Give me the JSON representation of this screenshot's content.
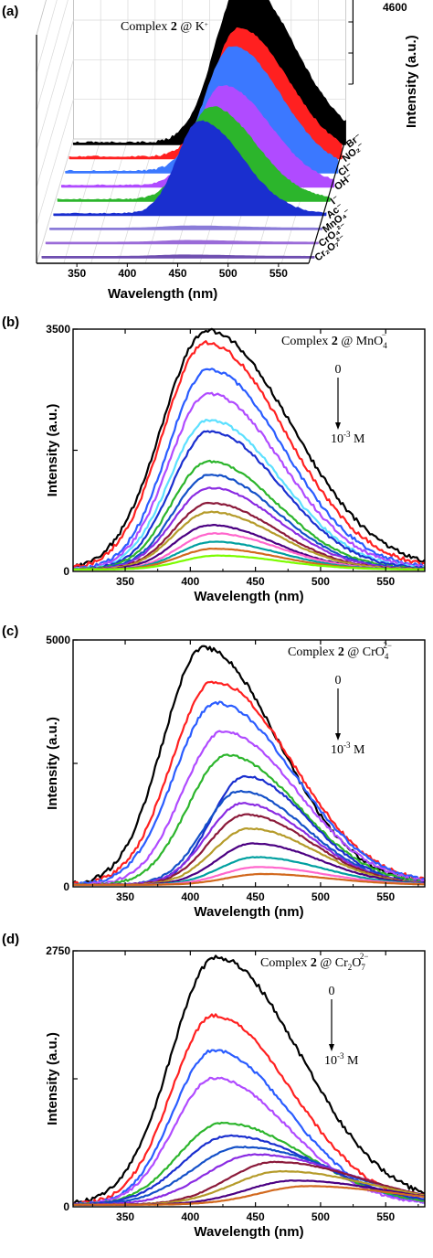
{
  "chart_data": [
    {
      "panel_label": "(a)",
      "type": "area",
      "annotation_prefix": "Complex ",
      "annotation_bold": "2",
      "annotation_suffix": " @ K",
      "annotation_sup": "+",
      "xlabel": "Wavelength (nm)",
      "zlabel": "Intensity (a.u.)",
      "xlim": [
        310,
        580
      ],
      "zmax": 4600,
      "x_ticks": [
        "350",
        "400",
        "450",
        "500",
        "550"
      ],
      "z_tick_label": "4600",
      "z_ticks_count": 6,
      "series": [
        {
          "name": "Br⁻",
          "color": "#000000",
          "peak": 4500,
          "center": 478,
          "width": 44
        },
        {
          "name": "NO₂⁻",
          "color": "#ff2020",
          "peak": 3600,
          "center": 478,
          "width": 42
        },
        {
          "name": "Cl⁻",
          "color": "#3b78ff",
          "peak": 3500,
          "center": 475,
          "width": 42
        },
        {
          "name": "OH⁻",
          "color": "#b04bff",
          "peak": 2800,
          "center": 470,
          "width": 40
        },
        {
          "name": "I⁻",
          "color": "#2cb52c",
          "peak": 2600,
          "center": 462,
          "width": 38
        },
        {
          "name": "Ac⁻",
          "color": "#1a2fcf",
          "peak": 2600,
          "center": 455,
          "width": 36
        },
        {
          "name": "MnO₄⁻",
          "color": "#8a7bd8",
          "peak": 60,
          "center": 450,
          "width": 40
        },
        {
          "name": "CrO₄²⁻",
          "color": "#9a6bd8",
          "peak": 50,
          "center": 450,
          "width": 40
        },
        {
          "name": "Cr₂O₇²⁻",
          "color": "#6f4fb0",
          "peak": 40,
          "center": 450,
          "width": 40
        }
      ]
    },
    {
      "panel_label": "(b)",
      "type": "line",
      "annotation_prefix": "Complex ",
      "annotation_bold": "2",
      "annotation_suffix": " @ MnO",
      "annotation_sub": "4",
      "annotation_sup": "−",
      "arrow_top": "0",
      "arrow_bottom_base": "10",
      "arrow_bottom_exp": "-3",
      "arrow_bottom_unit": " M",
      "xlabel": "Wavelength (nm)",
      "ylabel": "Intensity (a.u.)",
      "xlim": [
        310,
        580
      ],
      "ylim": [
        0,
        3500
      ],
      "x_ticks": [
        "350",
        "400",
        "450",
        "500",
        "550"
      ],
      "y_ticks": [
        "0",
        "3500"
      ],
      "series": [
        {
          "color": "#000000",
          "peak": 3450,
          "center": 413,
          "width": 56
        },
        {
          "color": "#ff2020",
          "peak": 3270,
          "center": 412,
          "width": 53
        },
        {
          "color": "#2a5cff",
          "peak": 2890,
          "center": 414,
          "width": 50
        },
        {
          "color": "#b04bff",
          "peak": 2540,
          "center": 414,
          "width": 49
        },
        {
          "color": "#5ce0ff",
          "peak": 2160,
          "center": 414,
          "width": 48
        },
        {
          "color": "#1a2fcf",
          "peak": 2000,
          "center": 415,
          "width": 47
        },
        {
          "color": "#2cb52c",
          "peak": 1560,
          "center": 414,
          "width": 46
        },
        {
          "color": "#1450c8",
          "peak": 1370,
          "center": 415,
          "width": 45
        },
        {
          "color": "#8a2be2",
          "peak": 1180,
          "center": 415,
          "width": 45
        },
        {
          "color": "#8b1a3a",
          "peak": 960,
          "center": 415,
          "width": 44
        },
        {
          "color": "#b59b2a",
          "peak": 830,
          "center": 415,
          "width": 44
        },
        {
          "color": "#4b0082",
          "peak": 640,
          "center": 415,
          "width": 43
        },
        {
          "color": "#ff66cc",
          "peak": 520,
          "center": 418,
          "width": 43
        },
        {
          "color": "#00a0a0",
          "peak": 400,
          "center": 418,
          "width": 43
        },
        {
          "color": "#d2691e",
          "peak": 300,
          "center": 418,
          "width": 43
        },
        {
          "color": "#7cfc00",
          "peak": 200,
          "center": 420,
          "width": 43
        }
      ]
    },
    {
      "panel_label": "(c)",
      "type": "line",
      "annotation_prefix": "Complex ",
      "annotation_bold": "2",
      "annotation_suffix": " @ CrO",
      "annotation_sub": "4",
      "annotation_sup": "2−",
      "arrow_top": "0",
      "arrow_bottom_base": "10",
      "arrow_bottom_exp": "-3",
      "arrow_bottom_unit": " M",
      "xlabel": "Wavelength (nm)",
      "ylabel": "Intensity (a.u.)",
      "xlim": [
        310,
        580
      ],
      "ylim": [
        0,
        5000
      ],
      "x_ticks": [
        "350",
        "400",
        "450",
        "500",
        "550"
      ],
      "y_ticks": [
        "0",
        "5000"
      ],
      "series": [
        {
          "color": "#000000",
          "peak": 4800,
          "center": 410,
          "width": 50
        },
        {
          "color": "#ff2020",
          "peak": 4120,
          "center": 418,
          "width": 52
        },
        {
          "color": "#2a5cff",
          "peak": 3680,
          "center": 420,
          "width": 52
        },
        {
          "color": "#b04bff",
          "peak": 3100,
          "center": 425,
          "width": 50
        },
        {
          "color": "#2cb52c",
          "peak": 2620,
          "center": 428,
          "width": 48
        },
        {
          "color": "#1a2fcf",
          "peak": 2200,
          "center": 442,
          "width": 42
        },
        {
          "color": "#1450c8",
          "peak": 1900,
          "center": 438,
          "width": 44
        },
        {
          "color": "#8a2be2",
          "peak": 1650,
          "center": 440,
          "width": 44
        },
        {
          "color": "#8b1a3a",
          "peak": 1420,
          "center": 442,
          "width": 44
        },
        {
          "color": "#b59b2a",
          "peak": 1140,
          "center": 445,
          "width": 44
        },
        {
          "color": "#4b0082",
          "peak": 840,
          "center": 448,
          "width": 44
        },
        {
          "color": "#00a0a0",
          "peak": 560,
          "center": 450,
          "width": 44
        },
        {
          "color": "#ff66cc",
          "peak": 360,
          "center": 452,
          "width": 44
        },
        {
          "color": "#d2691e",
          "peak": 220,
          "center": 455,
          "width": 44
        }
      ]
    },
    {
      "panel_label": "(d)",
      "type": "line",
      "annotation_prefix": "Complex ",
      "annotation_bold": "2",
      "annotation_suffix": " @ Cr",
      "annotation_sub": "2",
      "annotation_mid": "O",
      "annotation_sub2": "7",
      "annotation_sup": "2−",
      "arrow_top": "0",
      "arrow_bottom_base": "10",
      "arrow_bottom_exp": "-3",
      "arrow_bottom_unit": " M",
      "xlabel": "Wavelength (nm)",
      "ylabel": "Intensity (a.u.)",
      "xlim": [
        310,
        580
      ],
      "ylim": [
        0,
        2750
      ],
      "x_ticks": [
        "350",
        "400",
        "450",
        "500",
        "550"
      ],
      "y_ticks": [
        "0",
        "2750"
      ],
      "series": [
        {
          "color": "#000000",
          "peak": 2660,
          "center": 420,
          "width": 56
        },
        {
          "color": "#ff2020",
          "peak": 2030,
          "center": 418,
          "width": 52
        },
        {
          "color": "#2a5cff",
          "peak": 1660,
          "center": 418,
          "width": 50
        },
        {
          "color": "#b04bff",
          "peak": 1360,
          "center": 418,
          "width": 50
        },
        {
          "color": "#2cb52c",
          "peak": 880,
          "center": 425,
          "width": 55
        },
        {
          "color": "#1a2fcf",
          "peak": 740,
          "center": 430,
          "width": 58
        },
        {
          "color": "#1450c8",
          "peak": 620,
          "center": 440,
          "width": 62
        },
        {
          "color": "#8a2be2",
          "peak": 540,
          "center": 450,
          "width": 62
        },
        {
          "color": "#8b1a3a",
          "peak": 460,
          "center": 465,
          "width": 58
        },
        {
          "color": "#b59b2a",
          "peak": 360,
          "center": 470,
          "width": 60
        },
        {
          "color": "#4b0082",
          "peak": 260,
          "center": 480,
          "width": 60
        },
        {
          "color": "#d2691e",
          "peak": 200,
          "center": 490,
          "width": 60
        }
      ]
    }
  ]
}
